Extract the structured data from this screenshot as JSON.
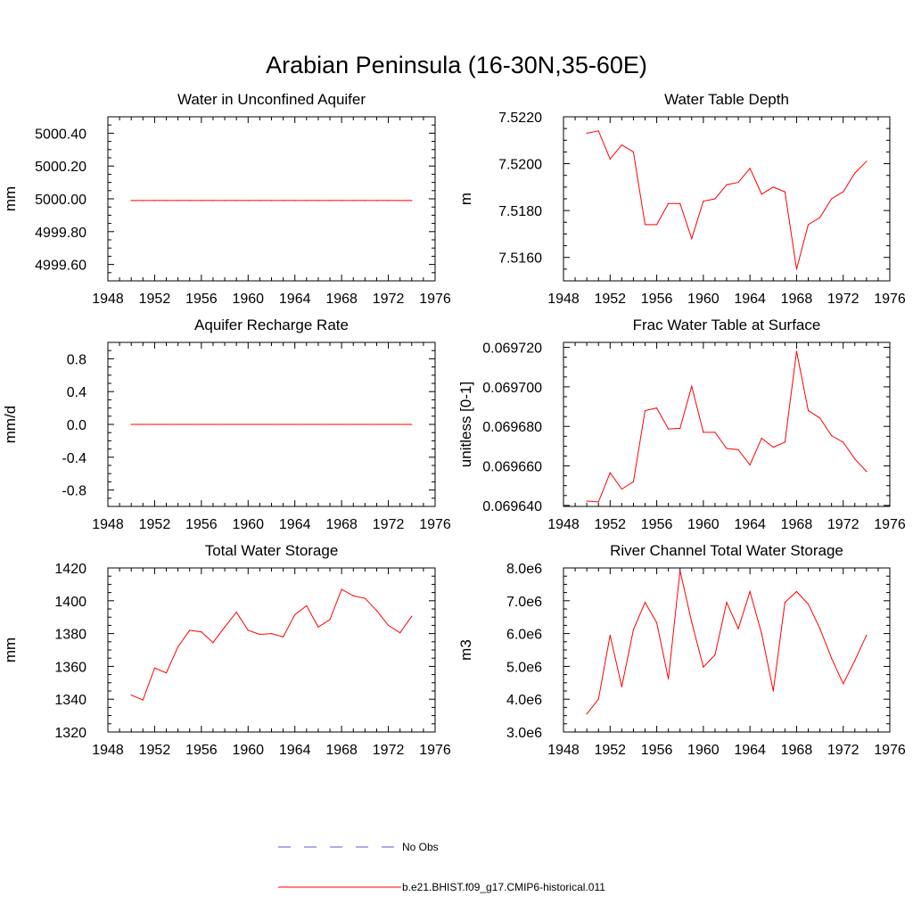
{
  "title": "Arabian Peninsula (16-30N,35-60E)",
  "colors": {
    "model": "#ff0000",
    "obs": "#5a5ad8",
    "axis": "#000000"
  },
  "legend": [
    {
      "label": "No Obs",
      "style": "dashed",
      "color": "#5a5ad8"
    },
    {
      "label": "b.e21.BHIST.f09_g17.CMIP6-historical.011",
      "style": "solid",
      "color": "#ff0000"
    }
  ],
  "chart_data": [
    {
      "type": "line",
      "title": "Water in Unconfined Aquifer",
      "ylabel": "mm",
      "xlim": [
        1948,
        1976
      ],
      "xticks": [
        1948,
        1952,
        1956,
        1960,
        1964,
        1968,
        1972,
        1976
      ],
      "ylim": [
        4999.5,
        5000.5
      ],
      "yticks": [
        4999.6,
        4999.8,
        5000.0,
        5000.2,
        5000.4
      ],
      "ytick_labels": [
        "4999.60",
        "4999.80",
        "5000.00",
        "5000.20",
        "5000.40"
      ],
      "series": [
        {
          "x": [
            1950,
            1951,
            1952,
            1953,
            1954,
            1955,
            1956,
            1957,
            1958,
            1959,
            1960,
            1961,
            1962,
            1963,
            1964,
            1965,
            1966,
            1967,
            1968,
            1969,
            1970,
            1971,
            1972,
            1973,
            1974
          ],
          "values": [
            4999.99,
            4999.99,
            4999.99,
            4999.99,
            4999.99,
            4999.99,
            4999.99,
            4999.99,
            4999.99,
            4999.99,
            4999.99,
            4999.99,
            4999.99,
            4999.99,
            4999.99,
            4999.99,
            4999.99,
            4999.99,
            4999.99,
            4999.99,
            4999.99,
            4999.99,
            4999.99,
            4999.99,
            4999.99
          ]
        }
      ]
    },
    {
      "type": "line",
      "title": "Water Table Depth",
      "ylabel": "m",
      "xlim": [
        1948,
        1976
      ],
      "xticks": [
        1948,
        1952,
        1956,
        1960,
        1964,
        1968,
        1972,
        1976
      ],
      "ylim": [
        7.515,
        7.522
      ],
      "yticks": [
        7.516,
        7.518,
        7.52,
        7.522
      ],
      "ytick_labels": [
        "7.5160",
        "7.5180",
        "7.5200",
        "7.5220"
      ],
      "series": [
        {
          "x": [
            1950,
            1951,
            1952,
            1953,
            1954,
            1955,
            1956,
            1957,
            1958,
            1959,
            1960,
            1961,
            1962,
            1963,
            1964,
            1965,
            1966,
            1967,
            1968,
            1969,
            1970,
            1971,
            1972,
            1973,
            1974
          ],
          "values": [
            7.5213,
            7.5214,
            7.5202,
            7.5208,
            7.5205,
            7.5174,
            7.5174,
            7.5183,
            7.5183,
            7.5168,
            7.5184,
            7.5185,
            7.5191,
            7.5192,
            7.5198,
            7.5187,
            7.519,
            7.5188,
            7.5155,
            7.5174,
            7.5177,
            7.5185,
            7.5188,
            7.5196,
            7.5201
          ]
        }
      ]
    },
    {
      "type": "line",
      "title": "Aquifer Recharge Rate",
      "ylabel": "mm/d",
      "xlim": [
        1948,
        1976
      ],
      "xticks": [
        1948,
        1952,
        1956,
        1960,
        1964,
        1968,
        1972,
        1976
      ],
      "ylim": [
        -1.0,
        1.0
      ],
      "yticks": [
        -0.8,
        -0.4,
        0.0,
        0.4,
        0.8
      ],
      "ytick_labels": [
        "-0.8",
        "-0.4",
        "0.0",
        "0.4",
        "0.8"
      ],
      "series": [
        {
          "x": [
            1950,
            1951,
            1952,
            1953,
            1954,
            1955,
            1956,
            1957,
            1958,
            1959,
            1960,
            1961,
            1962,
            1963,
            1964,
            1965,
            1966,
            1967,
            1968,
            1969,
            1970,
            1971,
            1972,
            1973,
            1974
          ],
          "values": [
            0,
            0,
            0,
            0,
            0,
            0,
            0,
            0,
            0,
            0,
            0,
            0,
            0,
            0,
            0,
            0,
            0,
            0,
            0,
            0,
            0,
            0,
            0,
            0,
            0
          ]
        }
      ]
    },
    {
      "type": "line",
      "title": "Frac Water Table at Surface",
      "ylabel": "unitless [0-1]",
      "xlim": [
        1948,
        1976
      ],
      "xticks": [
        1948,
        1952,
        1956,
        1960,
        1964,
        1968,
        1972,
        1976
      ],
      "ylim": [
        0.0696395,
        0.0697225
      ],
      "yticks": [
        0.06964,
        0.06966,
        0.06968,
        0.0697,
        0.06972
      ],
      "ytick_labels": [
        "0.069640",
        "0.069660",
        "0.069680",
        "0.069700",
        "0.069720"
      ],
      "series": [
        {
          "x": [
            1950,
            1951,
            1952,
            1953,
            1954,
            1955,
            1956,
            1957,
            1958,
            1959,
            1960,
            1961,
            1962,
            1963,
            1964,
            1965,
            1966,
            1967,
            1968,
            1969,
            1970,
            1971,
            1972,
            1973,
            1974
          ],
          "values": [
            0.0696422,
            0.0696418,
            0.0696565,
            0.0696483,
            0.069652,
            0.069688,
            0.0696893,
            0.0696787,
            0.069679,
            0.0697003,
            0.069677,
            0.069677,
            0.0696688,
            0.0696682,
            0.0696605,
            0.069674,
            0.0696695,
            0.069672,
            0.069718,
            0.069688,
            0.0696842,
            0.0696753,
            0.069672,
            0.0696635,
            0.0696572
          ]
        }
      ]
    },
    {
      "type": "line",
      "title": "Total Water Storage",
      "ylabel": "mm",
      "xlim": [
        1948,
        1976
      ],
      "xticks": [
        1948,
        1952,
        1956,
        1960,
        1964,
        1968,
        1972,
        1976
      ],
      "ylim": [
        1320,
        1420
      ],
      "yticks": [
        1320,
        1340,
        1360,
        1380,
        1400,
        1420
      ],
      "ytick_labels": [
        "1320",
        "1340",
        "1360",
        "1380",
        "1400",
        "1420"
      ],
      "series": [
        {
          "x": [
            1950,
            1951,
            1952,
            1953,
            1954,
            1955,
            1956,
            1957,
            1958,
            1959,
            1960,
            1961,
            1962,
            1963,
            1964,
            1965,
            1966,
            1967,
            1968,
            1969,
            1970,
            1971,
            1972,
            1973,
            1974
          ],
          "values": [
            1342.5,
            1339.5,
            1359,
            1356,
            1372,
            1382,
            1381,
            1374.5,
            1384,
            1393,
            1382,
            1379.5,
            1380,
            1378,
            1391.5,
            1397,
            1384,
            1388.5,
            1407,
            1403,
            1401.5,
            1394,
            1385,
            1380.5,
            1390.5
          ]
        }
      ]
    },
    {
      "type": "line",
      "title": "River Channel Total Water Storage",
      "ylabel": "m3",
      "xlim": [
        1948,
        1976
      ],
      "xticks": [
        1948,
        1952,
        1956,
        1960,
        1964,
        1968,
        1972,
        1976
      ],
      "ylim": [
        3000000,
        8000000
      ],
      "yticks": [
        3000000,
        4000000,
        5000000,
        6000000,
        7000000,
        8000000
      ],
      "ytick_labels": [
        "3.0e6",
        "4.0e6",
        "5.0e6",
        "6.0e6",
        "7.0e6",
        "8.0e6"
      ],
      "series": [
        {
          "x": [
            1950,
            1951,
            1952,
            1953,
            1954,
            1955,
            1956,
            1957,
            1958,
            1959,
            1960,
            1961,
            1962,
            1963,
            1964,
            1965,
            1966,
            1967,
            1968,
            1969,
            1970,
            1971,
            1972,
            1973,
            1974
          ],
          "values": [
            3550000,
            4000000,
            5950000,
            4380000,
            6120000,
            6950000,
            6330000,
            4620000,
            7920000,
            6350000,
            4980000,
            5350000,
            6950000,
            6150000,
            7280000,
            6000000,
            4250000,
            6950000,
            7280000,
            6900000,
            6150000,
            5250000,
            4470000,
            5180000,
            5950000
          ]
        }
      ]
    }
  ]
}
